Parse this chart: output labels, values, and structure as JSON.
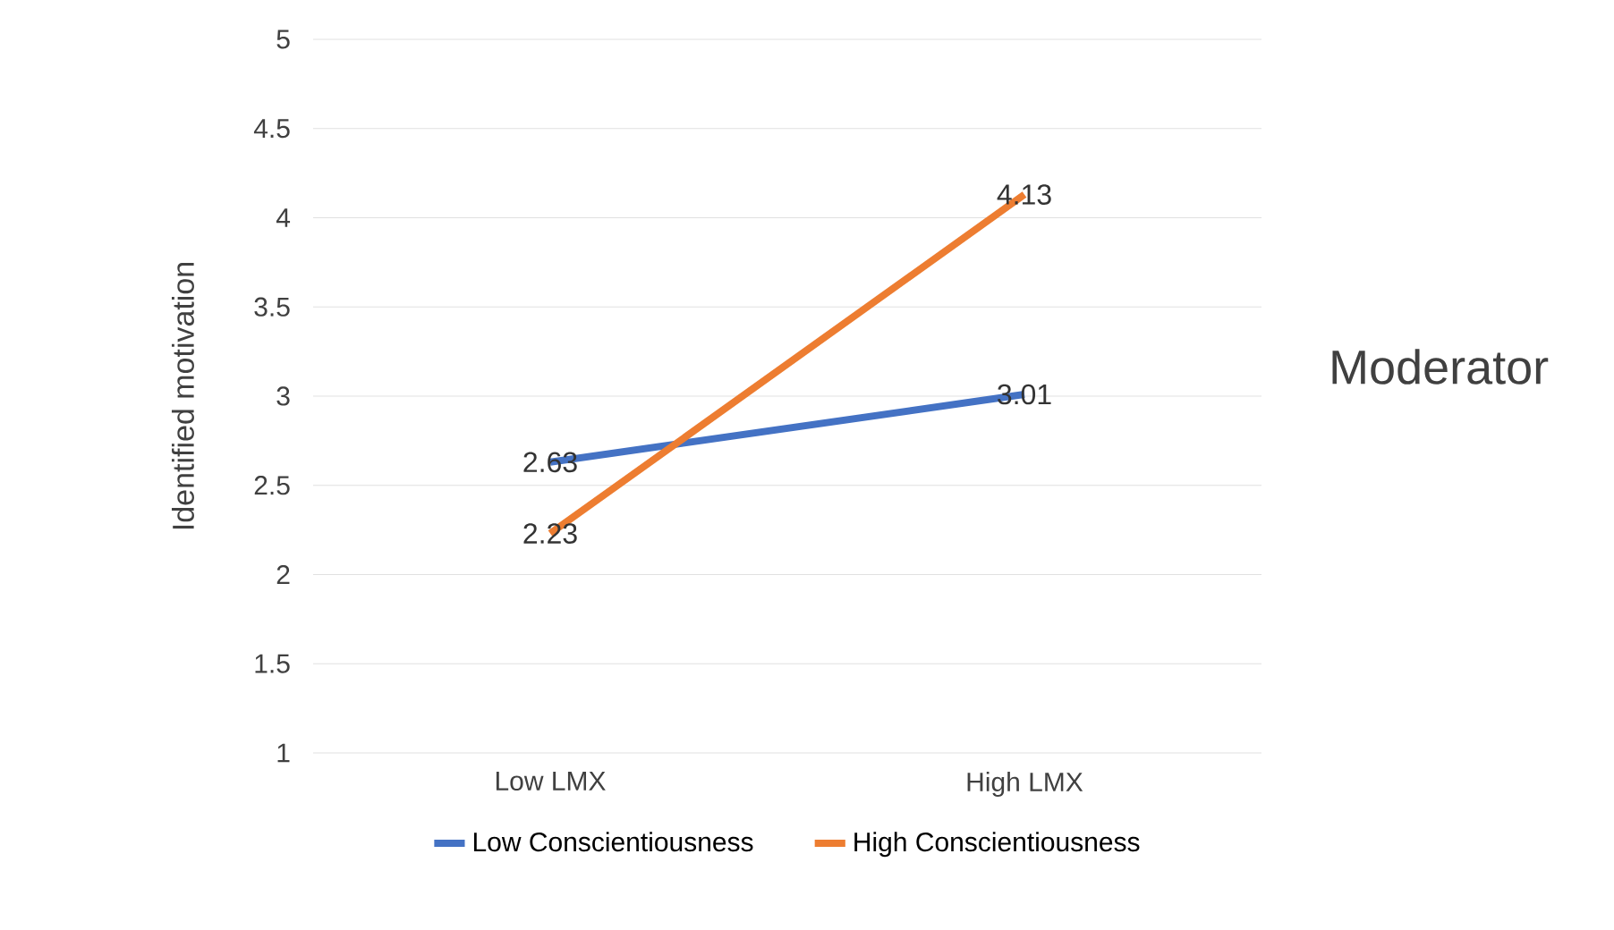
{
  "chart_data": {
    "type": "line",
    "categories": [
      "Low LMX",
      "High LMX"
    ],
    "series": [
      {
        "name": "Low Conscientiousness",
        "color": "#4472c4",
        "values": [
          2.63,
          3.01
        ]
      },
      {
        "name": "High Conscientiousness",
        "color": "#ed7d31",
        "values": [
          2.23,
          4.13
        ]
      }
    ],
    "ylabel": "Identified motivation",
    "ylim": [
      1,
      5
    ],
    "yticks": [
      1,
      1.5,
      2,
      2.5,
      3,
      3.5,
      4,
      4.5,
      5
    ],
    "grid": "y",
    "legend": "bottom",
    "data_labels": true,
    "marker": "none",
    "line_style": "solid",
    "annotations": [
      "Moderator"
    ]
  }
}
